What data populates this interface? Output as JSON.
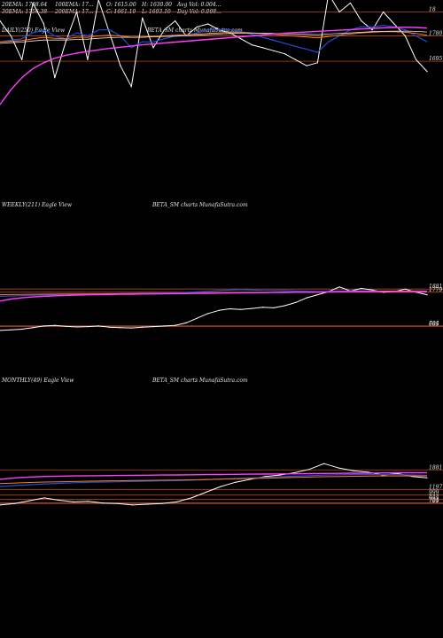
{
  "colors": {
    "background": "#000000",
    "price": "#ffffff",
    "ema_fast": "#1e4fd8",
    "ema_mid": "#ff7a1a",
    "ema_slow": "#e8e8e8",
    "ma_long": "#ff3cff",
    "ma_ref": "#c8a000",
    "level_line": "#b4481e"
  },
  "stats": {
    "ema20": "20EMA: 1798.64",
    "ma100": "100EMA: 17...",
    "open": "O: 1615.00",
    "high": "H: 1630.00",
    "avg_vol": "Avg Vol: 0.004...",
    "ema30": "30EMA: 1756.38",
    "ma200": "200EMA: 17...",
    "close": "C: 1661.10",
    "low": "L: 1603.10",
    "day_vol": "Day Vol: 0.008..."
  },
  "chart_data": [
    {
      "type": "line",
      "title": "DAILY(250) Eagle View",
      "watermark": "BETA_SM charts MunafaSutra.com",
      "ylabels": [
        "18",
        "1780",
        "1695"
      ],
      "ylevels": [
        1860,
        1780,
        1695
      ],
      "ylim": [
        1550,
        1900
      ],
      "x": [
        0,
        1,
        2,
        3,
        4,
        5,
        6,
        7,
        8,
        9,
        10,
        11,
        12,
        13,
        14,
        15,
        16,
        17,
        18,
        19,
        20,
        21,
        22,
        23,
        24,
        25,
        26,
        27,
        28,
        29,
        30,
        31,
        32,
        33,
        34,
        35,
        36,
        37,
        38,
        39
      ],
      "series": [
        {
          "role": "price",
          "values": [
            1830,
            1780,
            1700,
            1890,
            1820,
            1640,
            1760,
            1860,
            1700,
            1900,
            1790,
            1680,
            1610,
            1840,
            1740,
            1800,
            1830,
            1780,
            1810,
            1820,
            1800,
            1790,
            1770,
            1750,
            1740,
            1730,
            1720,
            1700,
            1680,
            1690,
            1920,
            1860,
            1890,
            1830,
            1800,
            1860,
            1820,
            1780,
            1700,
            1661
          ]
        },
        {
          "role": "ema_fast",
          "values": [
            1760,
            1765,
            1770,
            1790,
            1800,
            1780,
            1770,
            1790,
            1780,
            1800,
            1800,
            1780,
            1740,
            1760,
            1760,
            1770,
            1780,
            1780,
            1790,
            1800,
            1800,
            1800,
            1795,
            1785,
            1775,
            1765,
            1755,
            1745,
            1735,
            1725,
            1760,
            1780,
            1800,
            1810,
            1810,
            1815,
            1810,
            1800,
            1780,
            1760
          ]
        },
        {
          "role": "ema_mid",
          "values": [
            1760,
            1762,
            1764,
            1770,
            1775,
            1772,
            1770,
            1775,
            1775,
            1780,
            1782,
            1780,
            1775,
            1775,
            1778,
            1780,
            1782,
            1784,
            1786,
            1788,
            1790,
            1792,
            1792,
            1790,
            1788,
            1785,
            1782,
            1779,
            1776,
            1773,
            1778,
            1782,
            1786,
            1790,
            1792,
            1794,
            1794,
            1792,
            1788,
            1782
          ]
        },
        {
          "role": "ema_slow",
          "values": [
            1755,
            1757,
            1759,
            1763,
            1766,
            1766,
            1766,
            1768,
            1769,
            1772,
            1774,
            1775,
            1775,
            1776,
            1777,
            1778,
            1779,
            1780,
            1782,
            1784,
            1786,
            1788,
            1789,
            1789,
            1789,
            1788,
            1787,
            1786,
            1785,
            1784,
            1786,
            1788,
            1790,
            1792,
            1794,
            1795,
            1796,
            1796,
            1795,
            1793
          ]
        },
        {
          "role": "ma_long",
          "values": [
            1550,
            1600,
            1640,
            1670,
            1690,
            1705,
            1715,
            1722,
            1728,
            1733,
            1738,
            1742,
            1746,
            1750,
            1753,
            1756,
            1759,
            1762,
            1765,
            1768,
            1771,
            1774,
            1777,
            1780,
            1783,
            1786,
            1789,
            1791,
            1793,
            1795,
            1797,
            1799,
            1801,
            1803,
            1805,
            1807,
            1808,
            1809,
            1808,
            1806
          ]
        }
      ]
    },
    {
      "type": "line",
      "title": "WEEKLY(211) Eagle View",
      "watermark": "BETA_SM charts MunafaSutra.com",
      "ylabels": [
        "1881",
        "1779",
        "704",
        "685"
      ],
      "ylevels": [
        1881,
        1779,
        704,
        685
      ],
      "ylim": [
        500,
        2000
      ],
      "x": [
        0,
        1,
        2,
        3,
        4,
        5,
        6,
        7,
        8,
        9,
        10,
        11,
        12,
        13,
        14,
        15,
        16,
        17,
        18,
        19,
        20,
        21,
        22,
        23,
        24,
        25,
        26,
        27,
        28,
        29,
        30,
        31,
        32,
        33,
        34,
        35,
        36,
        37,
        38,
        39
      ],
      "series": [
        {
          "role": "price",
          "values": [
            560,
            580,
            600,
            650,
            700,
            720,
            690,
            670,
            680,
            700,
            660,
            650,
            640,
            660,
            680,
            700,
            720,
            800,
            950,
            1100,
            1200,
            1250,
            1230,
            1260,
            1300,
            1280,
            1350,
            1450,
            1600,
            1700,
            1800,
            1950,
            1820,
            1900,
            1850,
            1780,
            1800,
            1880,
            1780,
            1700
          ]
        },
        {
          "role": "ema_fast",
          "values": [
            1650,
            1660,
            1670,
            1680,
            1690,
            1700,
            1710,
            1715,
            1720,
            1725,
            1730,
            1735,
            1740,
            1745,
            1750,
            1755,
            1760,
            1770,
            1790,
            1810,
            1830,
            1850,
            1860,
            1850,
            1840,
            1835,
            1830,
            1820,
            1810,
            1800,
            1805,
            1815,
            1820,
            1825,
            1820,
            1810,
            1800,
            1795,
            1790,
            1780
          ]
        },
        {
          "role": "ema_mid",
          "values": [
            1700,
            1705,
            1710,
            1715,
            1718,
            1720,
            1722,
            1724,
            1726,
            1728,
            1730,
            1732,
            1734,
            1736,
            1738,
            1740,
            1742,
            1745,
            1750,
            1755,
            1760,
            1765,
            1770,
            1772,
            1774,
            1776,
            1778,
            1780,
            1782,
            1784,
            1786,
            1788,
            1790,
            1792,
            1794,
            1795,
            1796,
            1796,
            1795,
            1794
          ]
        },
        {
          "role": "ma_long",
          "values": [
            1500,
            1560,
            1600,
            1630,
            1650,
            1665,
            1678,
            1688,
            1696,
            1703,
            1709,
            1714,
            1718,
            1722,
            1726,
            1730,
            1734,
            1738,
            1742,
            1746,
            1750,
            1754,
            1758,
            1762,
            1766,
            1770,
            1774,
            1778,
            1782,
            1786,
            1790,
            1794,
            1798,
            1802,
            1806,
            1810,
            1812,
            1813,
            1812,
            1810
          ]
        }
      ]
    },
    {
      "type": "line",
      "title": "MONTHLY(49) Eagle View",
      "watermark": "BETA_SM charts MunafaSutra.com",
      "ylabels": [
        "1881",
        "1197",
        "999",
        "844",
        "724",
        "705"
      ],
      "ylevels": [
        1881,
        1197,
        999,
        844,
        724,
        705
      ],
      "ylim": [
        400,
        2200
      ],
      "x": [
        0,
        1,
        2,
        3,
        4,
        5,
        6,
        7,
        8,
        9,
        10,
        11,
        12,
        13,
        14,
        15,
        16,
        17,
        18,
        19,
        20,
        21,
        22,
        23,
        24,
        25,
        26,
        27,
        28,
        29
      ],
      "series": [
        {
          "role": "price",
          "values": [
            650,
            700,
            800,
            900,
            820,
            760,
            780,
            720,
            700,
            650,
            680,
            700,
            760,
            900,
            1100,
            1300,
            1450,
            1550,
            1650,
            1700,
            1780,
            1900,
            2100,
            1950,
            1850,
            1800,
            1700,
            1750,
            1650,
            1600
          ]
        },
        {
          "role": "ema_fast",
          "values": [
            1300,
            1330,
            1360,
            1390,
            1410,
            1430,
            1445,
            1455,
            1465,
            1475,
            1485,
            1495,
            1505,
            1520,
            1540,
            1560,
            1580,
            1600,
            1620,
            1640,
            1660,
            1680,
            1700,
            1710,
            1715,
            1718,
            1720,
            1715,
            1705,
            1695
          ]
        },
        {
          "role": "ema_mid",
          "values": [
            1400,
            1420,
            1440,
            1455,
            1465,
            1475,
            1485,
            1492,
            1500,
            1507,
            1514,
            1520,
            1526,
            1534,
            1544,
            1556,
            1568,
            1580,
            1592,
            1604,
            1616,
            1628,
            1640,
            1650,
            1658,
            1664,
            1668,
            1670,
            1670,
            1668
          ]
        },
        {
          "role": "ma_long",
          "values": [
            1550,
            1600,
            1630,
            1650,
            1660,
            1668,
            1675,
            1680,
            1685,
            1690,
            1695,
            1700,
            1705,
            1710,
            1715,
            1720,
            1725,
            1730,
            1735,
            1740,
            1745,
            1750,
            1755,
            1760,
            1765,
            1770,
            1775,
            1780,
            1782,
            1780
          ]
        }
      ]
    }
  ]
}
